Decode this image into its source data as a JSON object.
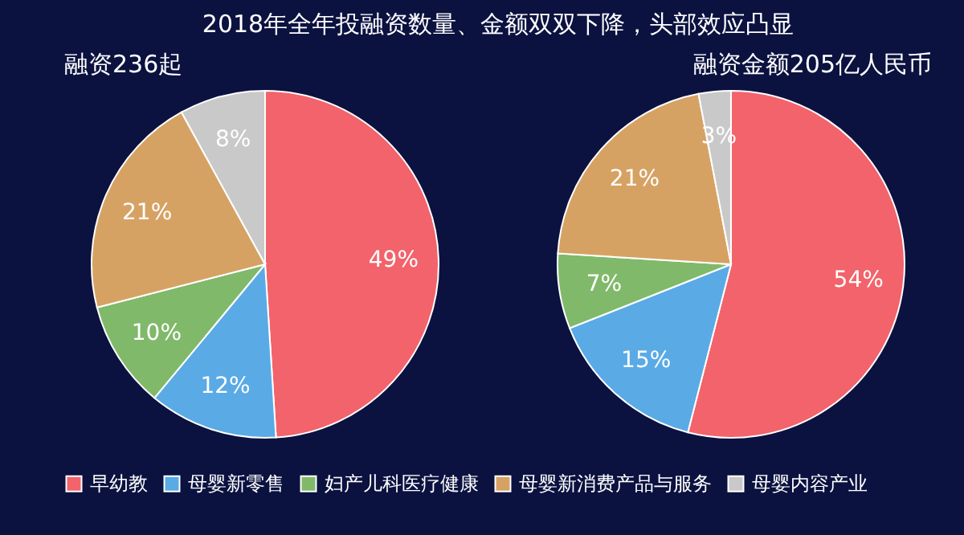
{
  "chart_data": [
    {
      "type": "pie",
      "title": "2018年全年投融资数量、金额双双下降，头部效应凸显",
      "subtitle": "融资236起",
      "categories": [
        "早幼教",
        "母婴新零售",
        "妇产儿科医疗健康",
        "母婴新消费产品与服务",
        "母婴内容产业"
      ],
      "values": [
        49,
        12,
        10,
        21,
        8
      ],
      "value_labels": [
        "49%",
        "12%",
        "10%",
        "21%",
        "8%"
      ],
      "colors": [
        "#f2636b",
        "#5aaae6",
        "#80b96a",
        "#d6a264",
        "#c9c9c9"
      ],
      "legend": "bottom"
    },
    {
      "type": "pie",
      "title": "融资金额205亿人民币",
      "categories": [
        null,
        null,
        null,
        null,
        null
      ],
      "values": [
        54,
        15,
        7,
        21,
        3
      ],
      "value_labels": [
        "54%",
        "15%",
        "7%",
        "21%",
        "3%"
      ],
      "colors": [
        "#f2636b",
        "#5aaae6",
        "#80b96a",
        "#d6a264",
        "#c9c9c9"
      ]
    }
  ]
}
